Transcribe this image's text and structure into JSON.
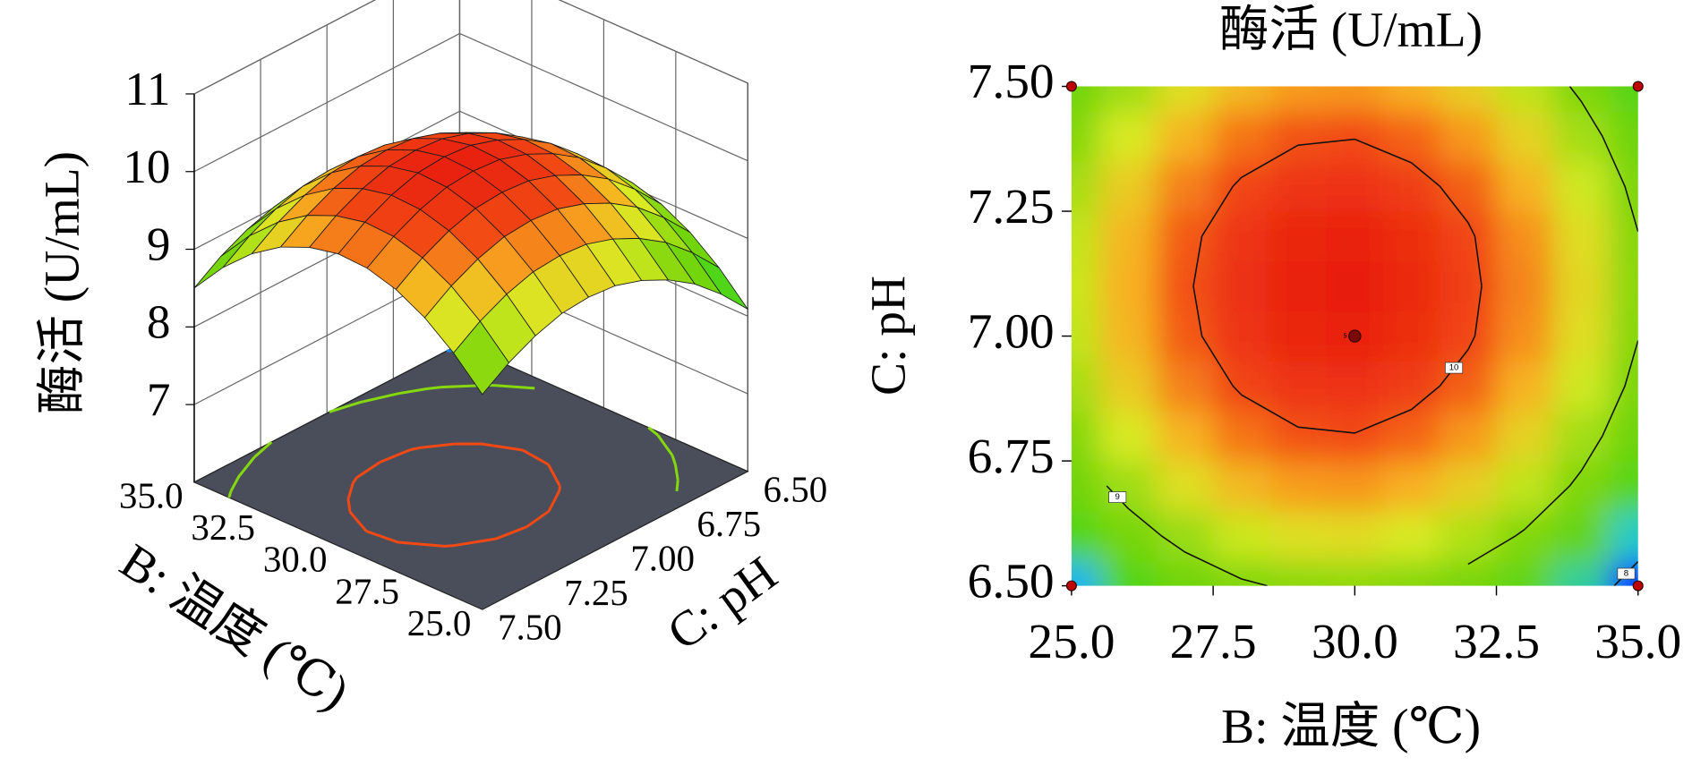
{
  "chart_data": [
    {
      "type": "surface3d",
      "zlabel": "酶活 (U/mL)",
      "xlabel": "B: 温度 (℃)",
      "ylabel": "C: pH",
      "x": [
        25,
        26,
        27,
        28,
        29,
        30,
        31,
        32,
        33,
        34,
        35
      ],
      "y": [
        6.5,
        6.6,
        6.7,
        6.8,
        6.9,
        7.0,
        7.1,
        7.2,
        7.3,
        7.4,
        7.5
      ],
      "z": [
        [
          8.09,
          8.46,
          8.75,
          8.95,
          9.06,
          9.08,
          9.0,
          8.84,
          8.59,
          8.25,
          7.82
        ],
        [
          8.46,
          8.83,
          9.12,
          9.32,
          9.43,
          9.45,
          9.37,
          9.21,
          8.96,
          8.62,
          8.19
        ],
        [
          8.77,
          9.14,
          9.43,
          9.63,
          9.74,
          9.76,
          9.68,
          9.52,
          9.27,
          8.93,
          8.5
        ],
        [
          9.0,
          9.37,
          9.66,
          9.86,
          9.97,
          9.99,
          9.91,
          9.75,
          9.5,
          9.16,
          8.73
        ],
        [
          9.17,
          9.54,
          9.83,
          10.03,
          10.14,
          10.16,
          10.08,
          9.92,
          9.67,
          9.33,
          8.9
        ],
        [
          9.28,
          9.65,
          9.94,
          10.14,
          10.25,
          10.27,
          10.19,
          10.03,
          9.78,
          9.44,
          9.01
        ],
        [
          9.31,
          9.68,
          9.97,
          10.17,
          10.28,
          10.3,
          10.22,
          10.06,
          9.81,
          9.47,
          9.04
        ],
        [
          9.28,
          9.65,
          9.94,
          10.14,
          10.25,
          10.27,
          10.19,
          10.03,
          9.78,
          9.44,
          9.01
        ],
        [
          9.17,
          9.54,
          9.83,
          10.03,
          10.14,
          10.16,
          10.08,
          9.92,
          9.67,
          9.33,
          8.9
        ],
        [
          9.0,
          9.37,
          9.66,
          9.86,
          9.97,
          9.99,
          9.91,
          9.75,
          9.5,
          9.16,
          8.73
        ],
        [
          8.77,
          9.14,
          9.43,
          9.63,
          9.74,
          9.76,
          9.68,
          9.52,
          9.27,
          8.93,
          8.5
        ]
      ],
      "xlim": [
        25,
        35
      ],
      "ylim": [
        6.5,
        7.5
      ],
      "zlim": [
        6,
        11
      ],
      "xticks": [
        {
          "value": 25,
          "label": "25.0"
        },
        {
          "value": 27.5,
          "label": "27.5"
        },
        {
          "value": 30,
          "label": "30.0"
        },
        {
          "value": 32.5,
          "label": "32.5"
        },
        {
          "value": 35,
          "label": "35.0"
        }
      ],
      "yticks": [
        {
          "value": 6.5,
          "label": "6.50"
        },
        {
          "value": 6.75,
          "label": "6.75"
        },
        {
          "value": 7,
          "label": "7.00"
        },
        {
          "value": 7.25,
          "label": "7.25"
        },
        {
          "value": 7.5,
          "label": "7.50"
        }
      ],
      "zticks": [
        7,
        8,
        9,
        10,
        11
      ],
      "levels": [
        8,
        9,
        10
      ],
      "colors": [
        "#0a2cff",
        "#19c8f0",
        "#4fd51a",
        "#6fd40c",
        "#8ad80f",
        "#d8ea22",
        "#f8b020",
        "#f24a14",
        "#e81e10"
      ],
      "floor_color": "#4a4e5a"
    },
    {
      "type": "contour",
      "title": "酶活 (U/mL)",
      "xlabel": "B: 温度 (℃)",
      "ylabel": "C: pH",
      "x": [
        25,
        26,
        27,
        28,
        29,
        30,
        31,
        32,
        33,
        34,
        35
      ],
      "y": [
        6.5,
        6.6,
        6.7,
        6.8,
        6.9,
        7.0,
        7.1,
        7.2,
        7.3,
        7.4,
        7.5
      ],
      "z": [
        [
          8.09,
          8.46,
          8.75,
          8.95,
          9.06,
          9.08,
          9.0,
          8.84,
          8.59,
          8.25,
          7.82
        ],
        [
          8.46,
          8.83,
          9.12,
          9.32,
          9.43,
          9.45,
          9.37,
          9.21,
          8.96,
          8.62,
          8.19
        ],
        [
          8.77,
          9.14,
          9.43,
          9.63,
          9.74,
          9.76,
          9.68,
          9.52,
          9.27,
          8.93,
          8.5
        ],
        [
          9.0,
          9.37,
          9.66,
          9.86,
          9.97,
          9.99,
          9.91,
          9.75,
          9.5,
          9.16,
          8.73
        ],
        [
          9.17,
          9.54,
          9.83,
          10.03,
          10.14,
          10.16,
          10.08,
          9.92,
          9.67,
          9.33,
          8.9
        ],
        [
          9.28,
          9.65,
          9.94,
          10.14,
          10.25,
          10.27,
          10.19,
          10.03,
          9.78,
          9.44,
          9.01
        ],
        [
          9.31,
          9.68,
          9.97,
          10.17,
          10.28,
          10.3,
          10.22,
          10.06,
          9.81,
          9.47,
          9.04
        ],
        [
          9.28,
          9.65,
          9.94,
          10.14,
          10.25,
          10.27,
          10.19,
          10.03,
          9.78,
          9.44,
          9.01
        ],
        [
          9.17,
          9.54,
          9.83,
          10.03,
          10.14,
          10.16,
          10.08,
          9.92,
          9.67,
          9.33,
          8.9
        ],
        [
          9.0,
          9.37,
          9.66,
          9.86,
          9.97,
          9.99,
          9.91,
          9.75,
          9.5,
          9.16,
          8.73
        ],
        [
          8.77,
          9.14,
          9.43,
          9.63,
          9.74,
          9.76,
          9.68,
          9.52,
          9.27,
          8.93,
          8.5
        ]
      ],
      "xlim": [
        25,
        35
      ],
      "ylim": [
        6.5,
        7.5
      ],
      "xticks": [
        {
          "value": 25,
          "label": "25.0"
        },
        {
          "value": 27.5,
          "label": "27.5"
        },
        {
          "value": 30,
          "label": "30.0"
        },
        {
          "value": 32.5,
          "label": "32.5"
        },
        {
          "value": 35,
          "label": "35.0"
        }
      ],
      "yticks": [
        {
          "value": 6.5,
          "label": "6.50"
        },
        {
          "value": 6.75,
          "label": "6.75"
        },
        {
          "value": 7,
          "label": "7.00"
        },
        {
          "value": 7.25,
          "label": "7.25"
        },
        {
          "value": 7.5,
          "label": "7.50"
        }
      ],
      "levels": [
        8,
        9,
        10
      ],
      "colors": [
        "#0a2cff",
        "#19c8f0",
        "#4fd51a",
        "#6fd40c",
        "#8ad80f",
        "#d8ea22",
        "#f8b020",
        "#f24a14",
        "#e81e10"
      ],
      "points": {
        "x": [
          25,
          25,
          35,
          35,
          30
        ],
        "y": [
          6.5,
          7.5,
          7.5,
          6.5,
          7.0
        ]
      },
      "point_labels": [
        null,
        null,
        null,
        null,
        "5"
      ],
      "point_color": "#c00000"
    }
  ]
}
